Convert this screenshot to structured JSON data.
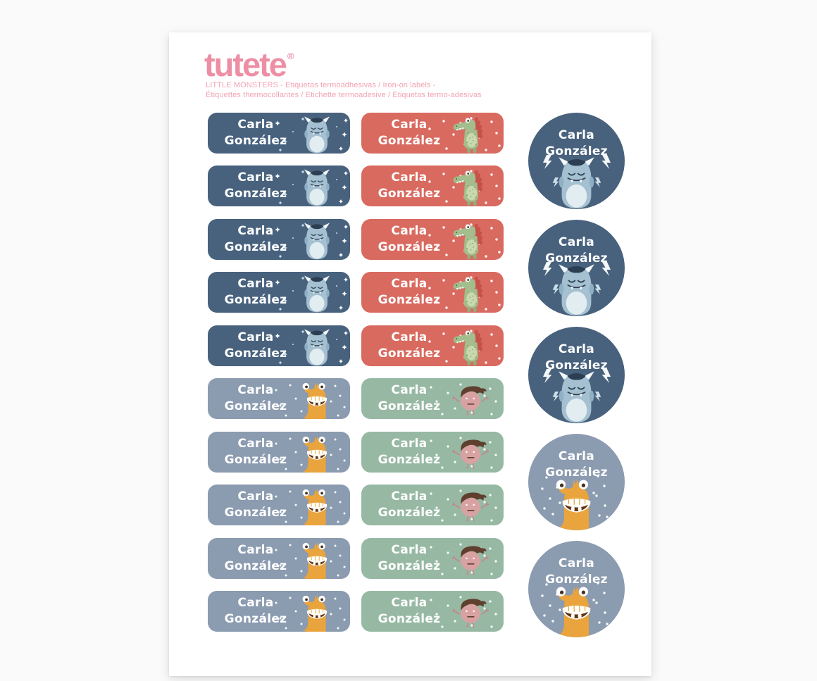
{
  "brand": {
    "logo_text": "tutete",
    "trademark": "®"
  },
  "header": {
    "subtitle_line1": "LITTLE MONSTERS - Etiquetas termoadhesivas / Iron-on labels -",
    "subtitle_line2": "Étiquettes thermocollantes / Etichette termoadesive / Etiquetas termo-adesivas"
  },
  "personalization": {
    "first_name": "Carla",
    "last_name": "González"
  },
  "colors": {
    "navy": "#48627e",
    "slate": "#8b9bb0",
    "coral": "#d96a60",
    "sage": "#97b9a4",
    "brand_pink": "#ee8ea4",
    "subtitle_pink": "#f2a3b2",
    "label_text": "#ffffff"
  },
  "labels": {
    "left_column_variants": [
      "navy",
      "navy",
      "navy",
      "navy",
      "navy",
      "slate",
      "slate",
      "slate",
      "slate",
      "slate"
    ],
    "middle_column_variants": [
      "coral",
      "coral",
      "coral",
      "coral",
      "coral",
      "sage",
      "sage",
      "sage",
      "sage",
      "sage"
    ],
    "round_column_variants": [
      "navy",
      "navy",
      "navy",
      "slate",
      "slate"
    ],
    "monster_by_variant": {
      "navy": "horned-yeti-monster",
      "coral": "crocodile-monster",
      "slate": "yellow-grinning-monster",
      "sage": "pink-bird-monster"
    }
  }
}
